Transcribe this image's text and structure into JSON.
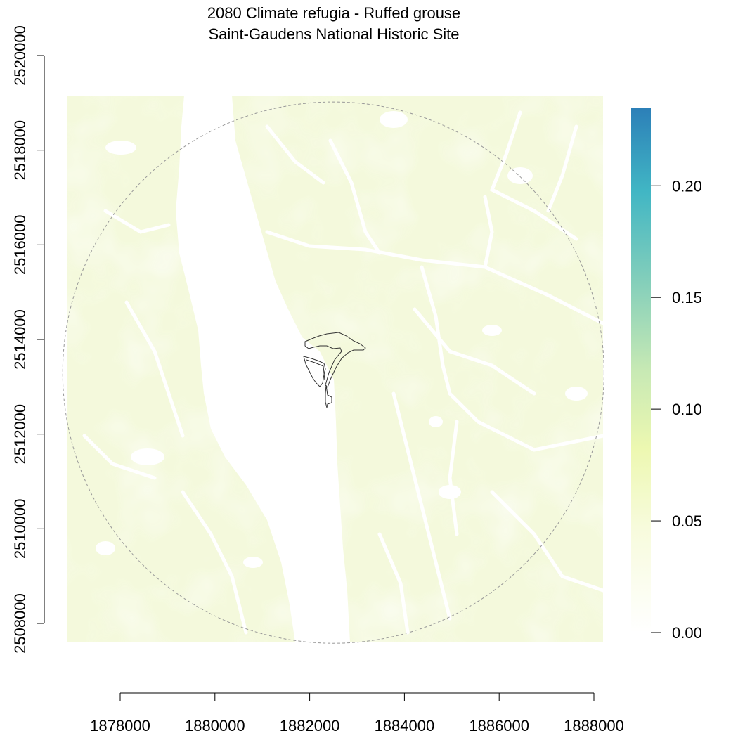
{
  "title": {
    "line1": "2080 Climate refugia - Ruffed grouse",
    "line2": "Saint-Gaudens National Historic Site"
  },
  "map": {
    "x_axis": {
      "ticks": [
        1878000,
        1880000,
        1882000,
        1884000,
        1886000,
        1888000
      ],
      "range": [
        1877000,
        1888100
      ]
    },
    "y_axis": {
      "ticks": [
        2508000,
        2510000,
        2512000,
        2514000,
        2516000,
        2518000,
        2520000
      ],
      "range": [
        2507600,
        2520100
      ]
    },
    "raster_extent": {
      "x": [
        1876700,
        1888200
      ],
      "y": [
        2507600,
        2519100
      ]
    },
    "buffer_circle": {
      "center": [
        1882500,
        2513300
      ],
      "radius_m": 5800,
      "style": "dashed gray"
    },
    "park_boundary": "Saint-Gaudens National Historic Site"
  },
  "legend": {
    "ticks": [
      "0.00",
      "0.05",
      "0.10",
      "0.15",
      "0.20"
    ],
    "max_value": 0.235,
    "colors": [
      "#ffffff",
      "#f7fbdc",
      "#edf8b1",
      "#c7e9b4",
      "#7fcdbb",
      "#41b6c4",
      "#2c7fb8"
    ]
  },
  "colors": {
    "raster_fill": "#f4f9dc",
    "raster_light": "#fafce9",
    "buffer_line": "#999999",
    "boundary_line": "#333333"
  }
}
